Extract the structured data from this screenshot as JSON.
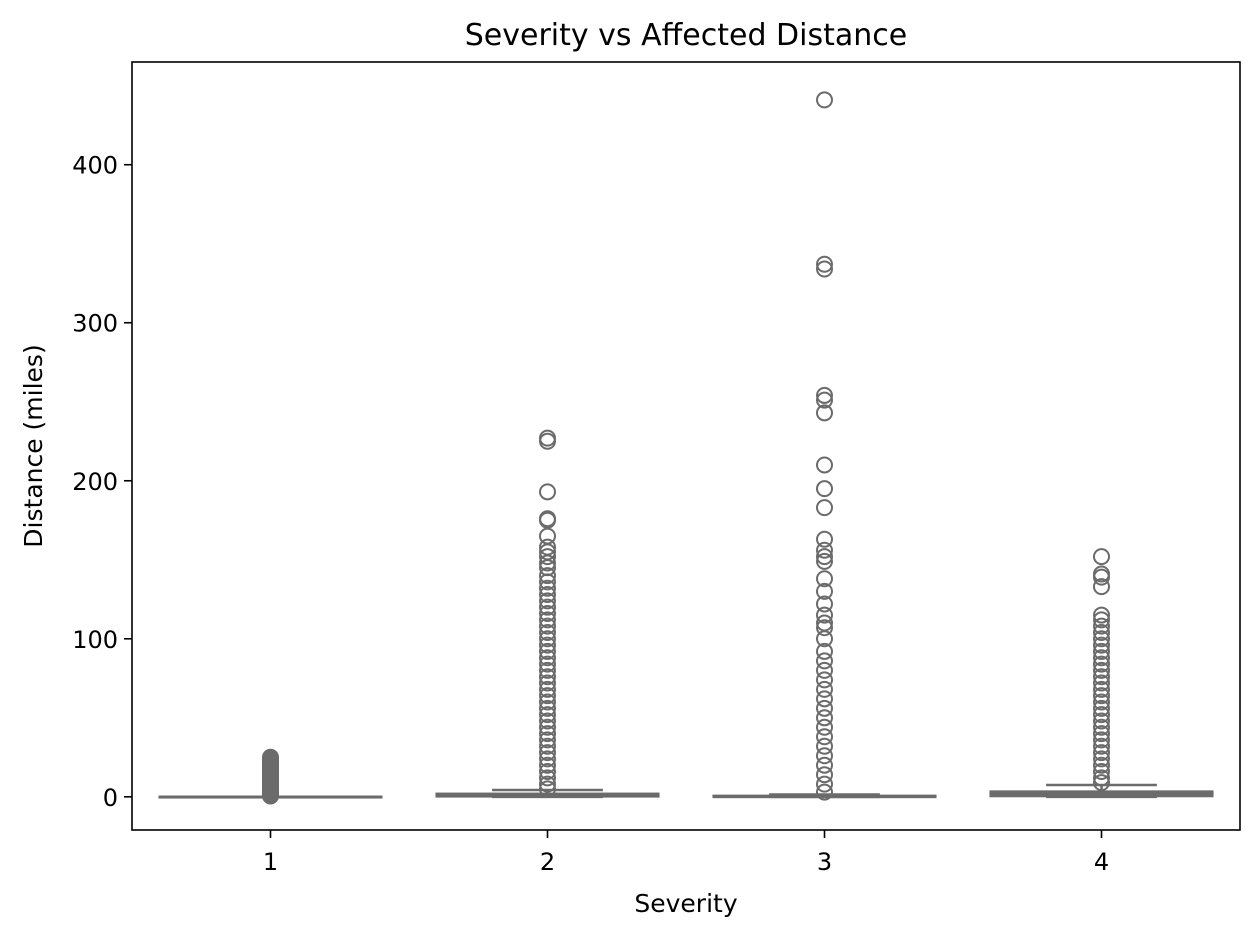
{
  "chart_data": {
    "type": "box",
    "title": "Severity vs Affected Distance",
    "xlabel": "Severity",
    "ylabel": "Distance (miles)",
    "categories": [
      "1",
      "2",
      "3",
      "4"
    ],
    "ylim": [
      -21,
      465
    ],
    "yticks": [
      0,
      100,
      200,
      300,
      400
    ],
    "grid": false,
    "color": "#6b6b6b",
    "boxes": [
      {
        "category": "1",
        "q1": 0,
        "median": 0,
        "q3": 0,
        "whisker_low": 0,
        "whisker_high": 0,
        "outliers": [
          25,
          24,
          23,
          22,
          21,
          20,
          19,
          18,
          17,
          16,
          15,
          14,
          13,
          12,
          11,
          10,
          9,
          8,
          7,
          6,
          5,
          4,
          3,
          2,
          1,
          0.5
        ]
      },
      {
        "category": "2",
        "q1": 0.3,
        "median": 0.8,
        "q3": 1.9,
        "whisker_low": 0,
        "whisker_high": 4.3,
        "outliers": [
          227,
          225,
          193,
          176,
          175,
          165,
          158,
          155,
          152,
          148,
          145,
          140,
          136,
          132,
          128,
          124,
          120,
          116,
          112,
          108,
          104,
          100,
          96,
          92,
          88,
          84,
          80,
          76,
          72,
          68,
          64,
          60,
          56,
          52,
          48,
          44,
          40,
          36,
          32,
          28,
          24,
          20,
          16,
          12,
          8,
          5
        ]
      },
      {
        "category": "3",
        "q1": 0,
        "median": 0,
        "q3": 0.6,
        "whisker_low": 0,
        "whisker_high": 1.5,
        "outliers": [
          441,
          337,
          334,
          254,
          251,
          243,
          210,
          195,
          183,
          163,
          156,
          152,
          149,
          138,
          130,
          122,
          115,
          110,
          107,
          100,
          92,
          86,
          80,
          74,
          68,
          62,
          56,
          50,
          44,
          38,
          32,
          26,
          20,
          14,
          8,
          3
        ]
      },
      {
        "category": "4",
        "q1": 0.5,
        "median": 1.3,
        "q3": 3.3,
        "whisker_low": 0,
        "whisker_high": 7.5,
        "outliers": [
          152,
          141,
          139,
          133,
          115,
          112,
          108,
          104,
          100,
          96,
          92,
          88,
          84,
          80,
          76,
          72,
          68,
          64,
          60,
          56,
          52,
          48,
          44,
          40,
          36,
          32,
          28,
          24,
          20,
          16,
          12,
          9
        ]
      }
    ]
  }
}
